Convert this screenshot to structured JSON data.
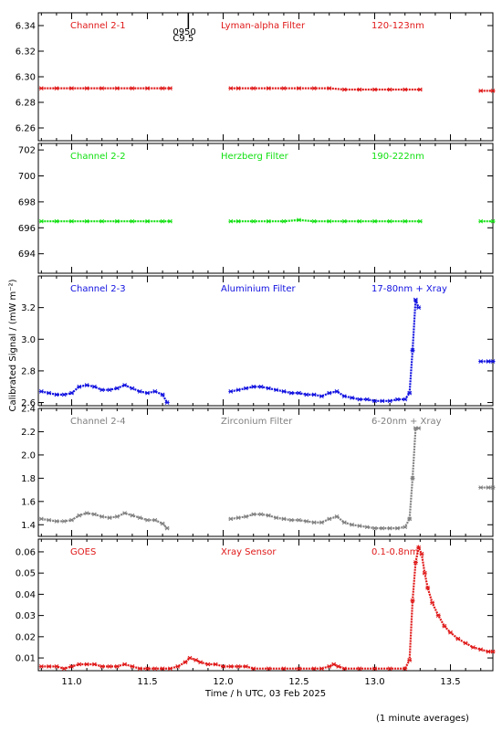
{
  "x_axis": {
    "label": "Time / h UTC, 03 Feb 2025",
    "range": [
      10.78,
      13.78
    ],
    "ticks": [
      "11.0",
      "11.5",
      "12.0",
      "12.5",
      "13.0",
      "13.5"
    ]
  },
  "y_axis_label": "Calibrated Signal / (mW m⁻²)",
  "footnote": "(1 minute averages)",
  "flare_marker": {
    "time": 11.77,
    "line1": "0950",
    "line2": "C9.5"
  },
  "colors": {
    "red": "#e01818",
    "green": "#10e010",
    "blue": "#1010e0",
    "gray": "#808080"
  },
  "chart_data": [
    {
      "type": "scatter",
      "channel": "Channel 2-1",
      "filter": "Lyman-alpha Filter",
      "band": "120-123nm",
      "color": "#e01818",
      "ylim": [
        6.25,
        6.35
      ],
      "yticks": [
        "6.26",
        "6.28",
        "6.30",
        "6.32",
        "6.34"
      ],
      "x": [
        10.8,
        10.9,
        11.0,
        11.1,
        11.2,
        11.3,
        11.4,
        11.5,
        11.6,
        11.65,
        12.05,
        12.1,
        12.2,
        12.3,
        12.4,
        12.5,
        12.6,
        12.7,
        12.8,
        12.9,
        13.0,
        13.1,
        13.2,
        13.3,
        13.7,
        13.78
      ],
      "y": [
        6.291,
        6.291,
        6.291,
        6.291,
        6.291,
        6.291,
        6.291,
        6.291,
        6.291,
        6.291,
        6.291,
        6.291,
        6.291,
        6.291,
        6.291,
        6.291,
        6.291,
        6.291,
        6.29,
        6.29,
        6.29,
        6.29,
        6.29,
        6.29,
        6.289,
        6.289
      ]
    },
    {
      "type": "scatter",
      "channel": "Channel 2-2",
      "filter": "Herzberg Filter",
      "band": "190-222nm",
      "color": "#10e010",
      "ylim": [
        692.5,
        702.5
      ],
      "yticks": [
        "694",
        "696",
        "698",
        "700",
        "702"
      ],
      "x": [
        10.8,
        10.9,
        11.0,
        11.1,
        11.2,
        11.3,
        11.4,
        11.5,
        11.6,
        11.65,
        12.05,
        12.1,
        12.2,
        12.3,
        12.4,
        12.5,
        12.6,
        12.7,
        12.8,
        12.9,
        13.0,
        13.1,
        13.2,
        13.3,
        13.7,
        13.78
      ],
      "y": [
        696.5,
        696.5,
        696.5,
        696.5,
        696.5,
        696.5,
        696.5,
        696.5,
        696.5,
        696.5,
        696.5,
        696.5,
        696.5,
        696.5,
        696.5,
        696.6,
        696.5,
        696.5,
        696.5,
        696.5,
        696.5,
        696.5,
        696.5,
        696.5,
        696.5,
        696.5
      ]
    },
    {
      "type": "scatter",
      "channel": "Channel 2-3",
      "filter": "Aluminium Filter",
      "band": "17-80nm + Xray",
      "color": "#1010e0",
      "ylim": [
        2.58,
        3.4
      ],
      "yticks": [
        "2.6",
        "2.8",
        "3.0",
        "3.2"
      ],
      "x": [
        10.8,
        10.85,
        10.9,
        10.95,
        11.0,
        11.05,
        11.1,
        11.15,
        11.2,
        11.25,
        11.3,
        11.35,
        11.4,
        11.45,
        11.5,
        11.55,
        11.6,
        11.63,
        12.05,
        12.1,
        12.15,
        12.2,
        12.25,
        12.3,
        12.35,
        12.4,
        12.45,
        12.5,
        12.55,
        12.6,
        12.65,
        12.7,
        12.75,
        12.8,
        12.85,
        12.9,
        12.95,
        13.0,
        13.05,
        13.1,
        13.15,
        13.2,
        13.23,
        13.25,
        13.27,
        13.29,
        13.7,
        13.75,
        13.78
      ],
      "y": [
        2.67,
        2.66,
        2.65,
        2.65,
        2.66,
        2.7,
        2.71,
        2.7,
        2.68,
        2.68,
        2.69,
        2.71,
        2.69,
        2.67,
        2.66,
        2.67,
        2.65,
        2.6,
        2.67,
        2.68,
        2.69,
        2.7,
        2.7,
        2.69,
        2.68,
        2.67,
        2.66,
        2.66,
        2.65,
        2.65,
        2.64,
        2.66,
        2.67,
        2.64,
        2.63,
        2.62,
        2.62,
        2.61,
        2.61,
        2.61,
        2.62,
        2.62,
        2.66,
        2.93,
        3.25,
        3.2,
        2.86,
        2.86,
        2.86
      ]
    },
    {
      "type": "scatter",
      "channel": "Channel 2-4",
      "filter": "Zirconium Filter",
      "band": "6-20nm + Xray",
      "color": "#808080",
      "ylim": [
        1.3,
        2.4
      ],
      "yticks": [
        "1.4",
        "1.6",
        "1.8",
        "2.0",
        "2.2",
        "2.4"
      ],
      "x": [
        10.8,
        10.85,
        10.9,
        10.95,
        11.0,
        11.05,
        11.1,
        11.15,
        11.2,
        11.25,
        11.3,
        11.35,
        11.4,
        11.45,
        11.5,
        11.55,
        11.6,
        11.63,
        12.05,
        12.1,
        12.15,
        12.2,
        12.25,
        12.3,
        12.35,
        12.4,
        12.45,
        12.5,
        12.55,
        12.6,
        12.65,
        12.7,
        12.75,
        12.8,
        12.85,
        12.9,
        12.95,
        13.0,
        13.05,
        13.1,
        13.15,
        13.2,
        13.23,
        13.25,
        13.27,
        13.29,
        13.7,
        13.75,
        13.78
      ],
      "y": [
        1.45,
        1.44,
        1.43,
        1.43,
        1.44,
        1.48,
        1.5,
        1.49,
        1.47,
        1.46,
        1.47,
        1.5,
        1.48,
        1.46,
        1.44,
        1.44,
        1.41,
        1.37,
        1.45,
        1.46,
        1.47,
        1.49,
        1.49,
        1.48,
        1.46,
        1.45,
        1.44,
        1.44,
        1.43,
        1.42,
        1.42,
        1.45,
        1.47,
        1.42,
        1.4,
        1.39,
        1.38,
        1.37,
        1.37,
        1.37,
        1.37,
        1.38,
        1.45,
        1.8,
        2.23,
        2.23,
        1.72,
        1.72,
        1.72
      ]
    },
    {
      "type": "scatter",
      "channel": "GOES",
      "filter": "Xray Sensor",
      "band": "0.1-0.8nm",
      "color": "#e01818",
      "ylim": [
        0.004,
        0.066
      ],
      "yticks": [
        "0.01",
        "0.02",
        "0.03",
        "0.04",
        "0.05",
        "0.06"
      ],
      "x": [
        10.8,
        10.85,
        10.9,
        10.95,
        11.0,
        11.05,
        11.1,
        11.15,
        11.2,
        11.25,
        11.3,
        11.35,
        11.4,
        11.45,
        11.5,
        11.55,
        11.6,
        11.65,
        11.7,
        11.75,
        11.78,
        11.82,
        11.85,
        11.9,
        11.95,
        12.0,
        12.05,
        12.1,
        12.15,
        12.2,
        12.3,
        12.4,
        12.5,
        12.6,
        12.65,
        12.7,
        12.73,
        12.76,
        12.8,
        12.9,
        13.0,
        13.1,
        13.2,
        13.23,
        13.25,
        13.27,
        13.29,
        13.31,
        13.33,
        13.35,
        13.38,
        13.42,
        13.46,
        13.5,
        13.55,
        13.6,
        13.65,
        13.7,
        13.75,
        13.78
      ],
      "y": [
        0.006,
        0.006,
        0.006,
        0.005,
        0.006,
        0.007,
        0.007,
        0.007,
        0.006,
        0.006,
        0.006,
        0.007,
        0.006,
        0.005,
        0.005,
        0.005,
        0.005,
        0.005,
        0.006,
        0.008,
        0.01,
        0.009,
        0.008,
        0.007,
        0.007,
        0.006,
        0.006,
        0.006,
        0.006,
        0.005,
        0.005,
        0.005,
        0.005,
        0.005,
        0.005,
        0.006,
        0.007,
        0.006,
        0.005,
        0.005,
        0.005,
        0.005,
        0.005,
        0.009,
        0.037,
        0.055,
        0.062,
        0.059,
        0.05,
        0.043,
        0.036,
        0.03,
        0.025,
        0.022,
        0.019,
        0.017,
        0.015,
        0.014,
        0.013,
        0.013
      ]
    }
  ]
}
